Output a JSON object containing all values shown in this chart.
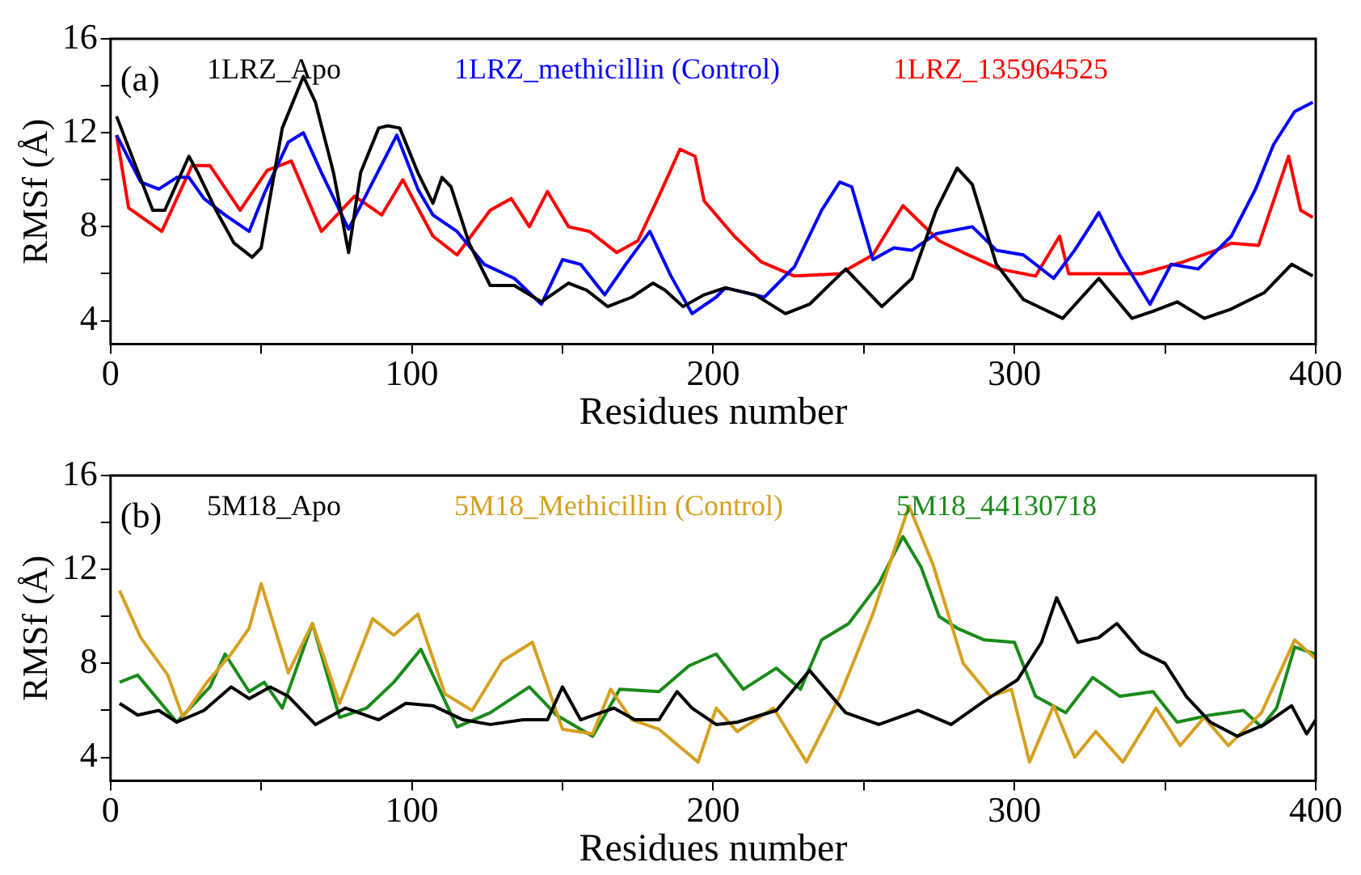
{
  "chart_data": [
    {
      "type": "line",
      "xlabel": "Residues number",
      "ylabel": "RMSf (Å)",
      "annotations": [
        "(a)"
      ],
      "xlim": [
        0,
        400
      ],
      "xticks": [
        0,
        {
          "value": 50,
          "label": null
        },
        100,
        {
          "value": 150,
          "label": null
        },
        200,
        {
          "value": 250,
          "label": null
        },
        300,
        {
          "value": 350,
          "label": null
        },
        400
      ],
      "ylim": [
        3,
        16
      ],
      "yticks": [
        4,
        {
          "value": 6,
          "label": null
        },
        8,
        {
          "value": 10,
          "label": null
        },
        12,
        {
          "value": 14,
          "label": null
        },
        16
      ],
      "legend": "top",
      "marker": "none",
      "line_style": "solid",
      "series": [
        {
          "name": "1LRZ_Apo",
          "color": "#000000",
          "x": [
            2,
            14,
            18,
            26,
            29,
            35,
            41,
            47,
            50,
            57,
            64,
            68,
            74,
            79,
            83,
            89,
            92,
            96,
            102,
            107,
            110,
            113,
            119,
            126,
            134,
            143,
            152,
            158,
            165,
            173,
            180,
            184,
            190,
            197,
            204,
            214,
            224,
            232,
            244,
            256,
            266,
            274,
            281,
            286,
            294,
            303,
            316,
            328,
            339,
            346,
            354,
            363,
            372,
            383,
            392,
            399
          ],
          "values": [
            12.7,
            8.7,
            8.7,
            11.0,
            10.3,
            8.7,
            7.3,
            6.7,
            7.1,
            12.2,
            14.4,
            13.3,
            10.3,
            6.9,
            10.3,
            12.2,
            12.3,
            12.2,
            10.3,
            9.0,
            10.1,
            9.7,
            7.3,
            5.5,
            5.5,
            4.8,
            5.6,
            5.3,
            4.6,
            5.0,
            5.6,
            5.3,
            4.6,
            5.1,
            5.4,
            5.1,
            4.3,
            4.7,
            6.2,
            4.6,
            5.8,
            8.7,
            10.5,
            9.8,
            6.4,
            4.9,
            4.1,
            5.8,
            4.1,
            4.4,
            4.8,
            4.1,
            4.5,
            5.2,
            6.4,
            5.9
          ]
        },
        {
          "name": "1LRZ_methicillin (Control)",
          "color": "#0000ff",
          "x": [
            2,
            10,
            16,
            22,
            26,
            31,
            38,
            46,
            51,
            59,
            64,
            70,
            79,
            87,
            95,
            102,
            107,
            115,
            124,
            134,
            143,
            150,
            156,
            164,
            171,
            179,
            186,
            193,
            201,
            204,
            217,
            227,
            236,
            242,
            246,
            253,
            260,
            266,
            274,
            286,
            294,
            303,
            313,
            320,
            328,
            335,
            345,
            352,
            361,
            372,
            380,
            386,
            393,
            399
          ],
          "values": [
            11.9,
            9.9,
            9.6,
            10.1,
            10.1,
            9.2,
            8.5,
            7.8,
            9.4,
            11.6,
            12.0,
            10.3,
            7.9,
            9.9,
            11.9,
            9.6,
            8.5,
            7.8,
            6.4,
            5.8,
            4.7,
            6.6,
            6.4,
            5.1,
            6.4,
            7.8,
            5.9,
            4.3,
            5.0,
            5.4,
            5.0,
            6.3,
            8.7,
            9.9,
            9.7,
            6.6,
            7.1,
            7.0,
            7.7,
            8.0,
            7.0,
            6.8,
            5.8,
            7.0,
            8.6,
            6.8,
            4.7,
            6.4,
            6.2,
            7.6,
            9.6,
            11.5,
            12.9,
            13.3
          ]
        },
        {
          "name": "1LRZ_135964525",
          "color": "#ff0000",
          "x": [
            2,
            6,
            17,
            27,
            33,
            43,
            52,
            60,
            70,
            81,
            90,
            97,
            107,
            115,
            126,
            133,
            139,
            145,
            152,
            159,
            168,
            175,
            182,
            189,
            194,
            197,
            207,
            216,
            227,
            242,
            253,
            263,
            275,
            283,
            295,
            307,
            315,
            318,
            328,
            342,
            356,
            367,
            372,
            381,
            391,
            395,
            399
          ],
          "values": [
            11.9,
            8.8,
            7.8,
            10.6,
            10.6,
            8.7,
            10.4,
            10.8,
            7.8,
            9.3,
            8.5,
            10.0,
            7.6,
            6.8,
            8.7,
            9.2,
            8.0,
            9.5,
            8.0,
            7.8,
            6.9,
            7.4,
            9.3,
            11.3,
            11.0,
            9.1,
            7.6,
            6.5,
            5.9,
            6.0,
            6.8,
            8.9,
            7.4,
            6.9,
            6.2,
            5.9,
            7.6,
            6.0,
            6.0,
            6.0,
            6.5,
            7.0,
            7.3,
            7.2,
            11.0,
            8.7,
            8.4
          ]
        }
      ]
    },
    {
      "type": "line",
      "xlabel": "Residues number",
      "ylabel": "RMSf (Å)",
      "annotations": [
        "(b)"
      ],
      "xlim": [
        0,
        400
      ],
      "xticks": [
        0,
        {
          "value": 50,
          "label": null
        },
        100,
        {
          "value": 150,
          "label": null
        },
        200,
        {
          "value": 250,
          "label": null
        },
        300,
        {
          "value": 350,
          "label": null
        },
        400
      ],
      "ylim": [
        3,
        16
      ],
      "yticks": [
        4,
        {
          "value": 6,
          "label": null
        },
        8,
        {
          "value": 10,
          "label": null
        },
        12,
        {
          "value": 14,
          "label": null
        },
        16
      ],
      "legend": "top",
      "marker": "none",
      "line_style": "solid",
      "series": [
        {
          "name": "5M18_Apo",
          "color": "#000000",
          "x": [
            3,
            9,
            16,
            22,
            31,
            40,
            46,
            53,
            59,
            68,
            78,
            89,
            98,
            107,
            117,
            126,
            137,
            145,
            150,
            156,
            167,
            174,
            182,
            188,
            193,
            201,
            208,
            221,
            232,
            244,
            255,
            268,
            279,
            290,
            301,
            309,
            314,
            321,
            328,
            334,
            342,
            350,
            357,
            365,
            374,
            383,
            392,
            397,
            400
          ],
          "values": [
            6.3,
            5.8,
            6.0,
            5.5,
            6.0,
            7.0,
            6.5,
            7.0,
            6.6,
            5.4,
            6.1,
            5.6,
            6.3,
            6.2,
            5.6,
            5.4,
            5.6,
            5.6,
            7.0,
            5.6,
            6.1,
            5.6,
            5.6,
            6.8,
            6.1,
            5.4,
            5.5,
            6.0,
            7.7,
            5.9,
            5.4,
            6.0,
            5.4,
            6.4,
            7.3,
            8.9,
            10.8,
            8.9,
            9.1,
            9.7,
            8.5,
            8.0,
            6.6,
            5.5,
            4.9,
            5.4,
            6.2,
            5.0,
            5.6
          ]
        },
        {
          "name": "5M18_Methicillin (Control)",
          "color": "#d4a020",
          "x": [
            3,
            10,
            19,
            24,
            32,
            40,
            46,
            50,
            59,
            67,
            76,
            87,
            94,
            102,
            111,
            120,
            130,
            140,
            150,
            160,
            166,
            173,
            182,
            195,
            201,
            208,
            220,
            231,
            242,
            253,
            265,
            273,
            283,
            292,
            299,
            305,
            313,
            320,
            327,
            336,
            347,
            355,
            363,
            371,
            382,
            393,
            400
          ],
          "values": [
            11.1,
            9.1,
            7.5,
            5.7,
            7.2,
            8.4,
            9.5,
            11.4,
            7.6,
            9.7,
            6.3,
            9.9,
            9.2,
            10.1,
            6.7,
            6.0,
            8.1,
            8.9,
            5.2,
            5.0,
            6.9,
            5.6,
            5.2,
            3.8,
            6.1,
            5.1,
            6.1,
            3.8,
            6.6,
            10.1,
            14.7,
            12.2,
            8.0,
            6.6,
            6.9,
            3.8,
            6.2,
            4.0,
            5.1,
            3.8,
            6.1,
            4.5,
            5.7,
            4.5,
            5.9,
            9.0,
            8.2
          ]
        },
        {
          "name": "5M18_44130718",
          "color": "#1a8a1a",
          "x": [
            3,
            9,
            22,
            33,
            38,
            46,
            51,
            57,
            67,
            76,
            85,
            94,
            103,
            115,
            126,
            139,
            148,
            160,
            169,
            182,
            192,
            201,
            210,
            221,
            229,
            236,
            245,
            255,
            263,
            269,
            275,
            281,
            290,
            300,
            307,
            317,
            326,
            335,
            346,
            354,
            365,
            376,
            382,
            387,
            393,
            400
          ],
          "values": [
            7.2,
            7.5,
            5.5,
            7.0,
            8.4,
            6.8,
            7.2,
            6.1,
            9.7,
            5.7,
            6.1,
            7.2,
            8.6,
            5.3,
            5.9,
            7.0,
            5.8,
            4.9,
            6.9,
            6.8,
            7.9,
            8.4,
            6.9,
            7.8,
            6.9,
            9.0,
            9.7,
            11.4,
            13.4,
            12.1,
            10.0,
            9.5,
            9.0,
            8.9,
            6.6,
            5.9,
            7.4,
            6.6,
            6.8,
            5.5,
            5.8,
            6.0,
            5.3,
            6.1,
            8.7,
            8.4
          ]
        }
      ]
    }
  ]
}
